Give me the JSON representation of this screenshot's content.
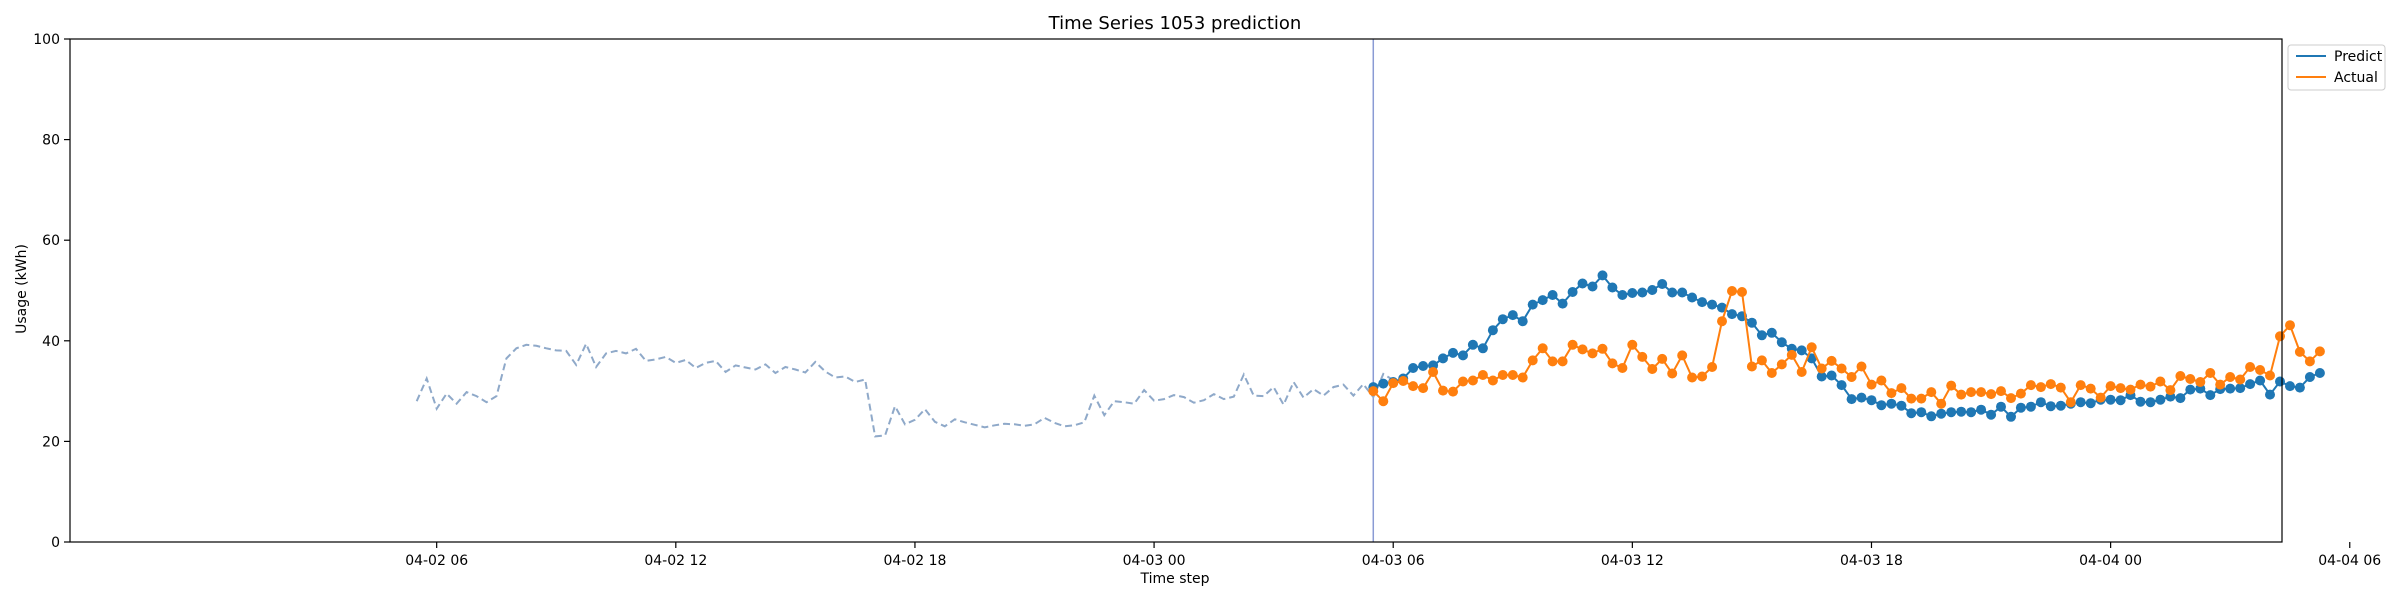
{
  "chart_data": {
    "type": "line",
    "title": "Time Series 1053 prediction",
    "xlabel": "Time step",
    "ylabel": "Usage (kWh)",
    "ylim": [
      0,
      100
    ],
    "yticks": [
      0,
      20,
      40,
      60,
      80,
      100
    ],
    "xlim_hours": [
      -3.2,
      52.3
    ],
    "xticks": [
      {
        "label": "04-02 06",
        "hour": 6
      },
      {
        "label": "04-02 12",
        "hour": 12
      },
      {
        "label": "04-02 18",
        "hour": 18
      },
      {
        "label": "04-03 00",
        "hour": 24
      },
      {
        "label": "04-03 06",
        "hour": 30
      },
      {
        "label": "04-03 12",
        "hour": 36
      },
      {
        "label": "04-03 18",
        "hour": 42
      },
      {
        "label": "04-04 00",
        "hour": 48
      },
      {
        "label": "04-04 06",
        "hour": 54
      }
    ],
    "step_hours": 0.25,
    "forecast_start_hour": 29.5,
    "legend": "top-right",
    "colors": {
      "history": "#8fa9c9",
      "predict": "#1f77b4",
      "actual": "#ff7f0e",
      "forecast_line": "#8a9bd4",
      "axis": "#000000"
    },
    "legend_entries": [
      "Predict",
      "Actual"
    ],
    "series": [
      {
        "start_hour": 5.5,
        "values": [
          28,
          32.5,
          26.5,
          29.5,
          27.5,
          29.8,
          29,
          27.8,
          29,
          36.5,
          38.5,
          39.2,
          39,
          38.5,
          38.1,
          38,
          35.2,
          39.4,
          34.8,
          37.5,
          38,
          37.5,
          38.4,
          36,
          36.3,
          36.8,
          35.6,
          36.2,
          34.6,
          35.6,
          36,
          33.8,
          35.1,
          34.7,
          34.3,
          35.3,
          33.6,
          34.8,
          34.3,
          33.7,
          35.8,
          33.9,
          32.7,
          32.9,
          31.8,
          32.3,
          21,
          21.2,
          27,
          23.4,
          24.3,
          26.4,
          23.9,
          23,
          24.4,
          23.8,
          23.3,
          22.8,
          23.2,
          23.5,
          23.4,
          23.1,
          23.4,
          24.7,
          23.7,
          23,
          23.2,
          23.8,
          29.1,
          25.2,
          28,
          27.8,
          27.5,
          30.2,
          28.1,
          28.4,
          29.2,
          28.8,
          27.7,
          28.2,
          29.4,
          28.4,
          28.9,
          33.3,
          29.1,
          29,
          30.8,
          27.3,
          31.8,
          28.7,
          30.4,
          29.1,
          30.8,
          31.3,
          29.1,
          31.4,
          28.8,
          33.4,
          32.2
        ]
      },
      {
        "name": "Predict",
        "start_hour": 29.5,
        "values": [
          30.8,
          31.5,
          31.8,
          32.5,
          34.6,
          35,
          35.1,
          36.5,
          37.6,
          37.1,
          39.2,
          38.5,
          42.1,
          44.3,
          45.1,
          43.9,
          47.2,
          48.1,
          49.1,
          47.4,
          49.7,
          51.4,
          50.8,
          53,
          50.6,
          49.1,
          49.5,
          49.6,
          50.1,
          51.3,
          49.6,
          49.6,
          48.6,
          47.7,
          47.2,
          46.6,
          45.3,
          44.9,
          43.6,
          41.1,
          41.6,
          39.7,
          38.4,
          38.1,
          36.5,
          32.9,
          33.1,
          31.2,
          28.4,
          28.7,
          28.2,
          27.2,
          27.5,
          27.1,
          25.6,
          25.8,
          25,
          25.5,
          25.8,
          25.9,
          25.8,
          26.3,
          25.3,
          26.9,
          24.9,
          26.7,
          26.9,
          27.8,
          27,
          27.1,
          27.5,
          27.8,
          27.6,
          28.3,
          28.3,
          28.2,
          29.2,
          27.9,
          27.8,
          28.3,
          28.9,
          28.6,
          30.3,
          30.5,
          29.2,
          30.4,
          30.5,
          30.6,
          31.4,
          32.1,
          29.3,
          31.9,
          31,
          30.7,
          32.8,
          33.6
        ]
      },
      {
        "name": "Actual",
        "start_hour": 29.5,
        "values": [
          30,
          28,
          31.6,
          32,
          31,
          30.6,
          33.8,
          30.1,
          29.9,
          31.9,
          32.1,
          33.2,
          32.1,
          33.2,
          33.2,
          32.7,
          36.1,
          38.5,
          35.9,
          35.9,
          39.2,
          38.3,
          37.5,
          38.4,
          35.5,
          34.6,
          39.2,
          36.8,
          34.4,
          36.4,
          33.5,
          37.1,
          32.7,
          32.9,
          34.8,
          43.9,
          49.9,
          49.7,
          34.9,
          36.1,
          33.6,
          35.3,
          37.2,
          33.8,
          38.7,
          34.5,
          36,
          34.5,
          32.8,
          34.9,
          31.3,
          32.1,
          29.6,
          30.6,
          28.5,
          28.5,
          29.8,
          27.5,
          31.1,
          29.3,
          29.8,
          29.8,
          29.4,
          30,
          28.6,
          29.5,
          31.2,
          30.8,
          31.4,
          30.7,
          27.8,
          31.2,
          30.5,
          28.7,
          31,
          30.6,
          30.3,
          31.3,
          30.9,
          31.9,
          30.2,
          33,
          32.4,
          31.8,
          33.6,
          31.3,
          32.8,
          32.3,
          34.8,
          34.2,
          33.1,
          40.9,
          43.1,
          37.8,
          35.9,
          37.9
        ]
      }
    ]
  }
}
